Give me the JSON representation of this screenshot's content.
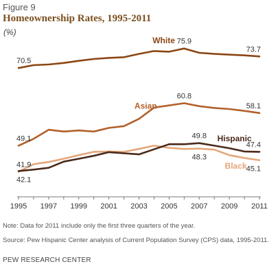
{
  "figure_label": "Figure 9",
  "title": "Homeownership Rates, 1995-2011",
  "unit": "(%)",
  "note": "Note: Data for 2011 include only the first three quarters of the year.",
  "source": "Source: Pew Hispanic Center analysis of Current Population Survey (CPS)  data, 1995-2011.",
  "org": "PEW RESEARCH CENTER",
  "colors": {
    "white": "#8b4513",
    "asian": "#b2602a",
    "hispanic": "#4a2a1a",
    "black": "#e3a67a",
    "axis": "#777777",
    "text": "#333333"
  },
  "chart_data": {
    "type": "line",
    "title": "Homeownership Rates, 1995-2011",
    "ylabel": "(%)",
    "x": [
      1995,
      1996,
      1997,
      1998,
      1999,
      2000,
      2001,
      2002,
      2003,
      2004,
      2005,
      2006,
      2007,
      2008,
      2009,
      2010,
      2011
    ],
    "x_tick_labels": [
      "1995",
      "1997",
      "1999",
      "2001",
      "2003",
      "2005",
      "2007",
      "2009",
      "2011"
    ],
    "ylim": [
      35,
      80
    ],
    "grid": false,
    "series": [
      {
        "name": "White",
        "color_key": "white",
        "values": [
          70.5,
          71.3,
          71.5,
          71.9,
          72.5,
          73.0,
          73.3,
          73.5,
          74.4,
          75.2,
          75.0,
          75.9,
          74.7,
          74.4,
          74.2,
          74.0,
          73.7
        ],
        "labels": [
          {
            "index": 0,
            "text": "70.5",
            "pos": "above"
          },
          {
            "index": 11,
            "text": "75.9",
            "pos": "above"
          },
          {
            "index": 16,
            "text": "73.7",
            "pos": "above"
          }
        ]
      },
      {
        "name": "Asian",
        "color_key": "asian",
        "values": [
          49.1,
          51.0,
          53.5,
          53.0,
          53.3,
          53.0,
          54.0,
          54.5,
          56.5,
          59.6,
          60.2,
          60.8,
          60.0,
          59.5,
          59.2,
          58.7,
          58.1
        ],
        "labels": [
          {
            "index": 0,
            "text": "49.1",
            "pos": "above"
          },
          {
            "index": 11,
            "text": "60.8",
            "pos": "above"
          },
          {
            "index": 16,
            "text": "58.1",
            "pos": "above"
          }
        ]
      },
      {
        "name": "Hispanic",
        "color_key": "hispanic",
        "values": [
          42.1,
          42.5,
          43.0,
          44.7,
          45.5,
          46.3,
          47.3,
          47.0,
          46.7,
          48.1,
          49.5,
          49.5,
          49.8,
          49.1,
          48.4,
          47.5,
          47.4
        ],
        "labels": [
          {
            "index": 0,
            "text": "42.1",
            "pos": "below"
          },
          {
            "index": 12,
            "text": "49.8",
            "pos": "above"
          },
          {
            "index": 16,
            "text": "47.4",
            "pos": "above"
          }
        ]
      },
      {
        "name": "Black",
        "color_key": "black",
        "values": [
          41.9,
          44.0,
          44.6,
          45.5,
          46.5,
          47.4,
          47.5,
          47.4,
          48.2,
          49.1,
          48.5,
          48.2,
          48.3,
          48.0,
          46.5,
          45.7,
          45.1
        ],
        "labels": [
          {
            "index": 0,
            "text": "41.9",
            "pos": "above"
          },
          {
            "index": 12,
            "text": "48.3",
            "pos": "below"
          },
          {
            "index": 16,
            "text": "45.1",
            "pos": "below"
          }
        ]
      }
    ]
  }
}
